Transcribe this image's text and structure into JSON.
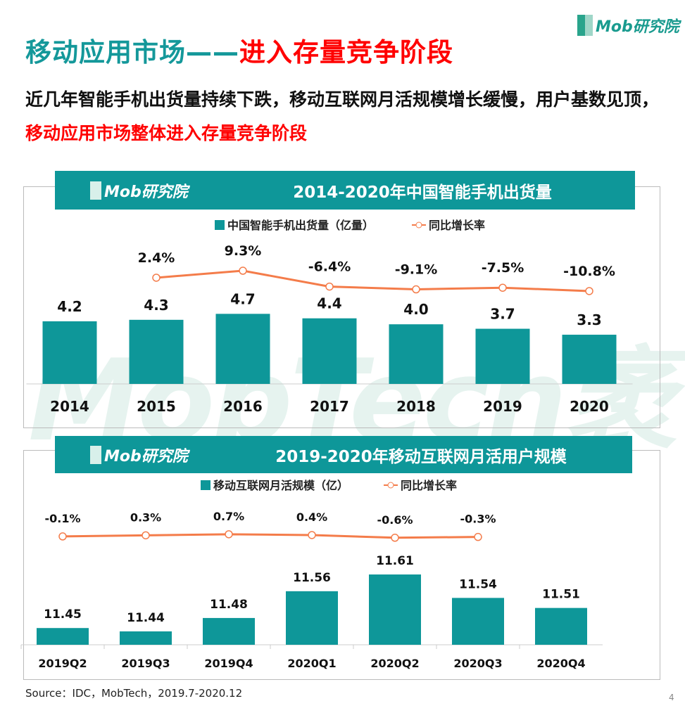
{
  "header": {
    "title_part1": "移动应用市场——",
    "title_part2": "进入存量竞争阶段",
    "logo": "Mob研究院"
  },
  "summary": {
    "part1": "近几年智能手机出货量持续下跌，移动互联网月活规模增长缓慢，用户基数见顶，",
    "part2": "移动应用市场整体进入存量竞争阶段"
  },
  "watermark": "MobTech袤博",
  "colors": {
    "bar": "#0e9799",
    "line": "#f47c4a",
    "accent_red": "#ff0000",
    "title_teal": "#14989a"
  },
  "chart_data": [
    {
      "type": "bar+line",
      "title": "2014-2020年中国智能手机出货量",
      "logo": "Mob研究院",
      "categories": [
        "2014",
        "2015",
        "2016",
        "2017",
        "2018",
        "2019",
        "2020"
      ],
      "series": [
        {
          "name": "中国智能手机出货量（亿量）",
          "type": "bar",
          "values": [
            4.2,
            4.3,
            4.7,
            4.4,
            4.0,
            3.7,
            3.3
          ],
          "labels": [
            "4.2",
            "4.3",
            "4.7",
            "4.4",
            "4.0",
            "3.7",
            "3.3"
          ]
        },
        {
          "name": "同比增长率",
          "type": "line",
          "values": [
            null,
            2.4,
            9.3,
            -6.4,
            -9.1,
            -7.5,
            -10.8
          ],
          "labels": [
            "",
            "2.4%",
            "9.3%",
            "-6.4%",
            "-9.1%",
            "-7.5%",
            "-10.8%"
          ]
        }
      ],
      "legend": "top",
      "grid": false
    },
    {
      "type": "bar+line",
      "title": "2019-2020年移动互联网月活用户规模",
      "logo": "Mob研究院",
      "categories": [
        "2019Q2",
        "2019Q3",
        "2019Q4",
        "2020Q1",
        "2020Q2",
        "2020Q3",
        "2020Q4"
      ],
      "series": [
        {
          "name": "移动互联网月活规模（亿）",
          "type": "bar",
          "values": [
            11.45,
            11.44,
            11.48,
            11.56,
            11.61,
            11.54,
            11.51
          ],
          "labels": [
            "11.45",
            "11.44",
            "11.48",
            "11.56",
            "11.61",
            "11.54",
            "11.51"
          ]
        },
        {
          "name": "同比增长率",
          "type": "line",
          "values": [
            -0.1,
            0.3,
            0.7,
            0.4,
            -0.6,
            -0.3,
            null
          ],
          "labels": [
            "-0.1%",
            "0.3%",
            "0.7%",
            "0.4%",
            "-0.6%",
            "-0.3%",
            ""
          ]
        }
      ],
      "legend": "top",
      "grid": false
    }
  ],
  "footer": {
    "source": "Source：IDC，MobTech，2019.7-2020.12",
    "page": "4"
  }
}
